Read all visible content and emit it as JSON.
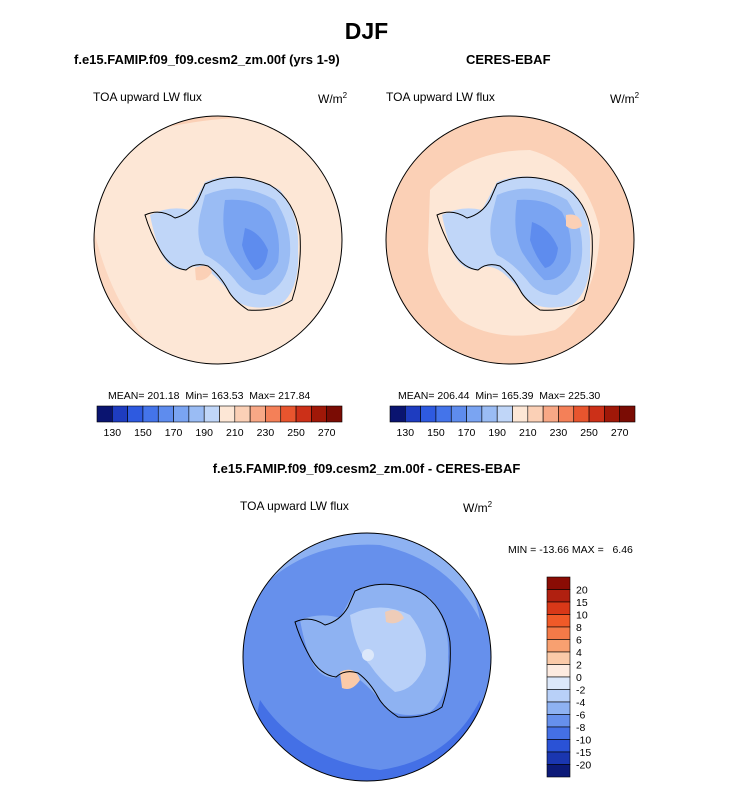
{
  "page": {
    "title": "DJF"
  },
  "panels": [
    {
      "heading": "f.e15.FAMIP.f09_f09.cesm2_zm.00f (yrs 1-9)",
      "variable": "TOA upward LW flux",
      "units_base": "W/m",
      "units_exp": "2",
      "stats": "MEAN= 201.18  Min= 163.53  Max= 217.84"
    },
    {
      "heading": "CERES-EBAF",
      "variable": "TOA upward LW flux",
      "units_base": "W/m",
      "units_exp": "2",
      "stats": "MEAN= 206.44  Min= 165.39  Max= 225.30"
    },
    {
      "heading": "f.e15.FAMIP.f09_f09.cesm2_zm.00f - CERES-EBAF",
      "variable": "TOA upward LW flux",
      "units_base": "W/m",
      "units_exp": "2",
      "stats": "MIN = -13.66 MAX =   6.46"
    }
  ],
  "chart_data": [
    {
      "type": "heatmap",
      "projection": "south-polar-stereographic",
      "title": "f.e15.FAMIP.f09_f09.cesm2_zm.00f (yrs 1-9)",
      "variable": "TOA upward LW flux",
      "units": "W/m2",
      "mean": 201.18,
      "min": 163.53,
      "max": 217.84,
      "colorbar_orientation": "horizontal",
      "levels": [
        130,
        140,
        150,
        160,
        170,
        180,
        190,
        200,
        210,
        220,
        230,
        240,
        250,
        260,
        270
      ],
      "tick_labels": [
        "130",
        "150",
        "170",
        "190",
        "210",
        "230",
        "250",
        "270"
      ],
      "colors": [
        "#0a1470",
        "#1e3cc0",
        "#2e5ae0",
        "#4474ea",
        "#5e8cee",
        "#7aa4f2",
        "#9abcf4",
        "#c0d6f8",
        "#fde7d6",
        "#fbd0b6",
        "#f8a886",
        "#f48058",
        "#e8552e",
        "#cc3018",
        "#a01808",
        "#7a0c04"
      ]
    },
    {
      "type": "heatmap",
      "projection": "south-polar-stereographic",
      "title": "CERES-EBAF",
      "variable": "TOA upward LW flux",
      "units": "W/m2",
      "mean": 206.44,
      "min": 165.39,
      "max": 225.3,
      "colorbar_orientation": "horizontal",
      "levels": [
        130,
        140,
        150,
        160,
        170,
        180,
        190,
        200,
        210,
        220,
        230,
        240,
        250,
        260,
        270
      ],
      "tick_labels": [
        "130",
        "150",
        "170",
        "190",
        "210",
        "230",
        "250",
        "270"
      ],
      "colors": [
        "#0a1470",
        "#1e3cc0",
        "#2e5ae0",
        "#4474ea",
        "#5e8cee",
        "#7aa4f2",
        "#9abcf4",
        "#c0d6f8",
        "#fde7d6",
        "#fbd0b6",
        "#f8a886",
        "#f48058",
        "#e8552e",
        "#cc3018",
        "#a01808",
        "#7a0c04"
      ]
    },
    {
      "type": "heatmap",
      "projection": "south-polar-stereographic",
      "title": "f.e15.FAMIP.f09_f09.cesm2_zm.00f - CERES-EBAF",
      "variable": "TOA upward LW flux",
      "units": "W/m2",
      "min": -13.66,
      "max": 6.46,
      "colorbar_orientation": "vertical",
      "tick_labels": [
        "20",
        "15",
        "10",
        "8",
        "6",
        "4",
        "2",
        "0",
        "-2",
        "-4",
        "-6",
        "-8",
        "-10",
        "-15",
        "-20"
      ],
      "colors": [
        "#8a0c04",
        "#b02010",
        "#d83818",
        "#f05a28",
        "#f47a48",
        "#f8a070",
        "#fbcaa8",
        "#fdebe0",
        "#dce8fa",
        "#b8d0f8",
        "#8eb2f2",
        "#6690ec",
        "#4470e6",
        "#2a52d6",
        "#1a36b0",
        "#0c1a78"
      ]
    }
  ]
}
